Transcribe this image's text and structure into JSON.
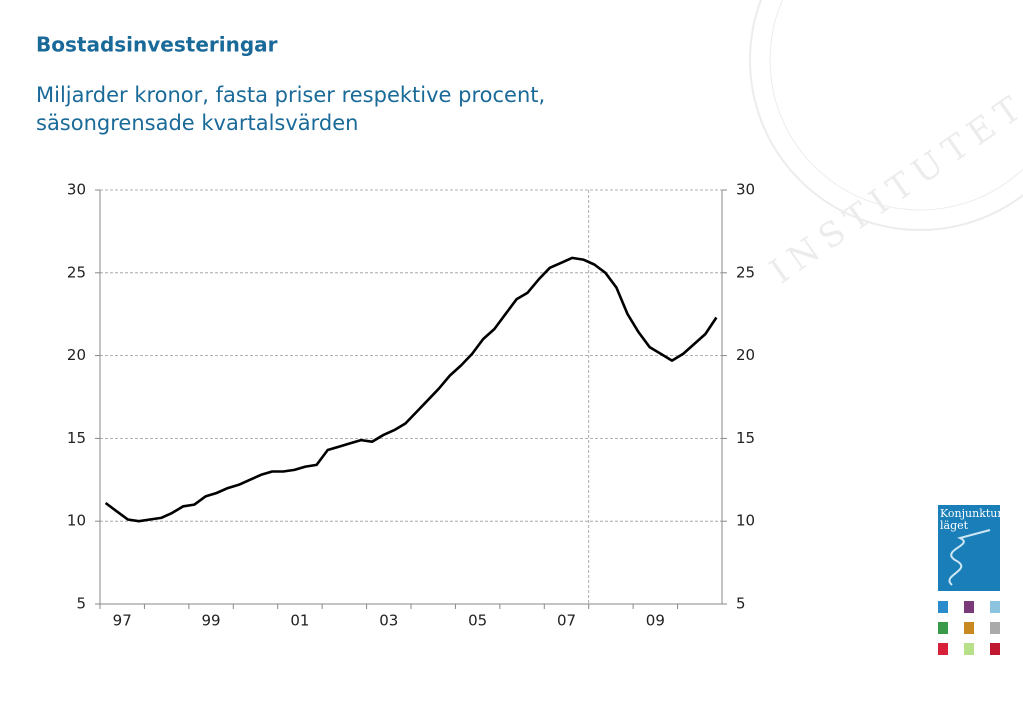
{
  "chart_data": {
    "type": "line",
    "title": "Bostadsinvesteringar",
    "subtitle": [
      "Miljarder kronor, fasta priser respektive procent,",
      "säsongrensade kvartalsvärden"
    ],
    "categories": [
      "97",
      null,
      null,
      null,
      null,
      null,
      null,
      null,
      "99",
      null,
      null,
      null,
      null,
      null,
      null,
      null,
      "01",
      null,
      null,
      null,
      null,
      null,
      null,
      null,
      "03",
      null,
      null,
      null,
      null,
      null,
      null,
      null,
      "05",
      null,
      null,
      null,
      null,
      null,
      null,
      null,
      "07",
      null,
      null,
      null,
      null,
      null,
      null,
      null,
      "09",
      null,
      null,
      null,
      null,
      null,
      null,
      null
    ],
    "series": [
      {
        "name": "Bostadsinvesteringar",
        "color": "#000000",
        "values": [
          11.1,
          10.6,
          10.1,
          10.0,
          10.1,
          10.2,
          10.5,
          10.9,
          11.0,
          11.5,
          11.7,
          12.0,
          12.2,
          12.5,
          12.8,
          13.0,
          13.0,
          13.1,
          13.3,
          13.4,
          14.3,
          14.5,
          14.7,
          14.9,
          14.8,
          15.2,
          15.5,
          15.9,
          16.6,
          17.3,
          18.0,
          18.8,
          19.4,
          20.1,
          21.0,
          21.6,
          22.5,
          23.4,
          23.8,
          24.6,
          25.3,
          25.6,
          25.9,
          25.8,
          25.5,
          25.0,
          24.1,
          22.5,
          21.4,
          20.5,
          20.1,
          19.7,
          20.1,
          20.7,
          21.3,
          22.3
        ]
      }
    ],
    "ylim": [
      5,
      30
    ],
    "yticks": [
      5,
      10,
      15,
      20,
      25,
      30
    ],
    "y2lim": [
      5,
      30
    ],
    "y2ticks": [
      5,
      10,
      15,
      20,
      25,
      30
    ],
    "grid": true,
    "vline_category": 44
  },
  "logo": {
    "line1": "Konjunktur",
    "line2": "läget"
  },
  "watermark": "INSTITUTET"
}
